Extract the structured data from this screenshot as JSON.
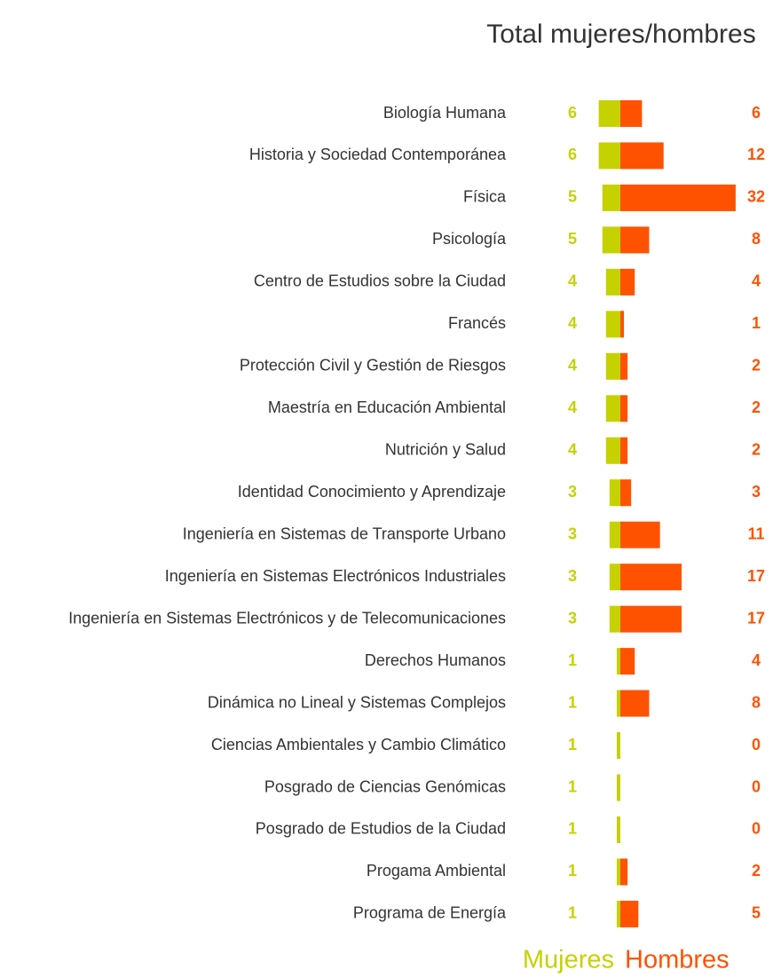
{
  "chart_data": {
    "type": "bar",
    "title": "Total mujeres/hombres",
    "categories": [
      "Biología Humana",
      "Historia y Sociedad Contemporánea",
      "Física",
      "Psicología",
      "Centro de Estudios sobre la Ciudad",
      "Francés",
      "Protección Civil y Gestión de Riesgos",
      "Maestría en Educación Ambiental",
      "Nutrición y Salud",
      "Identidad Conocimiento y Aprendizaje",
      "Ingeniería en Sistemas de Transporte Urbano",
      "Ingeniería en Sistemas Electrónicos Industriales",
      "Ingeniería en Sistemas Electrónicos y de Telecomunicaciones",
      "Derechos Humanos",
      "Dinámica no Lineal y Sistemas Complejos",
      "Ciencias Ambientales y Cambio Climático",
      "Posgrado de Ciencias Genómicas",
      "Posgrado de Estudios de la Ciudad",
      "Progama Ambiental",
      "Programa de Energía"
    ],
    "series": [
      {
        "name": "Mujeres",
        "color": "#c5d200",
        "values": [
          6,
          6,
          5,
          5,
          4,
          4,
          4,
          4,
          4,
          3,
          3,
          3,
          3,
          1,
          1,
          1,
          1,
          1,
          1,
          1
        ]
      },
      {
        "name": "Hombres",
        "color": "#ff5200",
        "values": [
          6,
          12,
          32,
          8,
          4,
          1,
          2,
          2,
          2,
          3,
          11,
          17,
          17,
          4,
          8,
          0,
          0,
          0,
          2,
          5
        ]
      }
    ]
  }
}
